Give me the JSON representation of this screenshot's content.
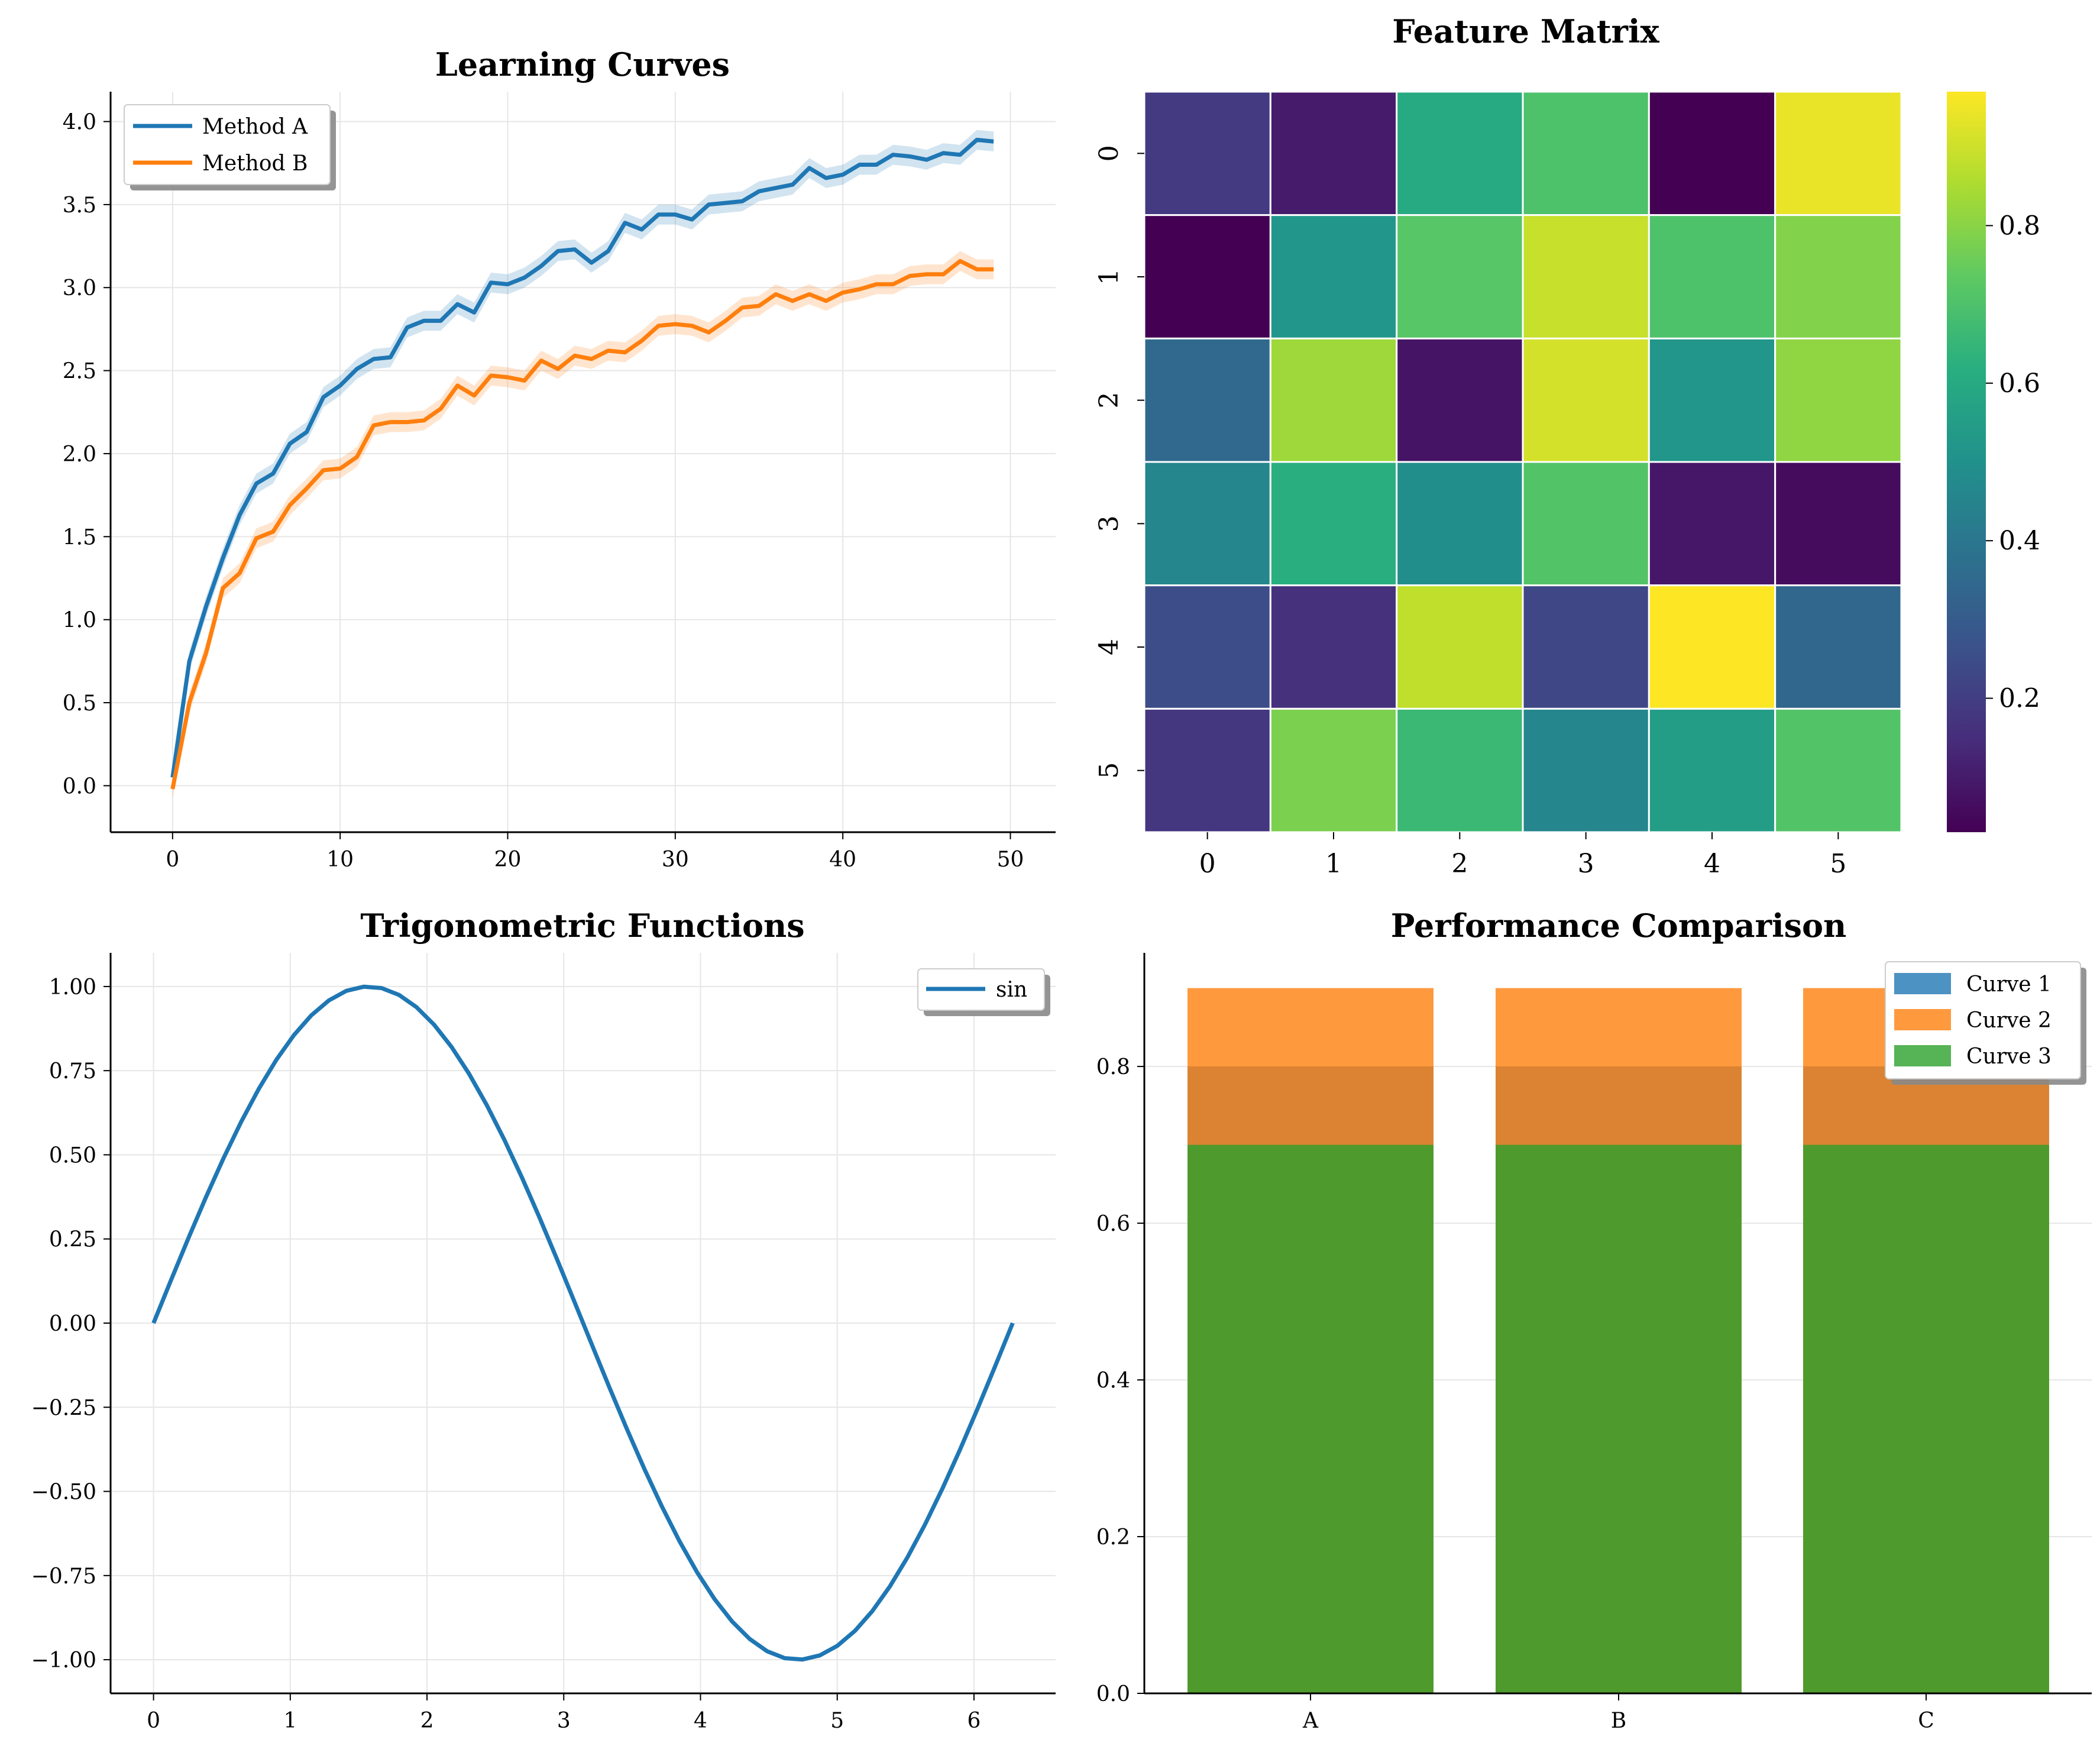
{
  "colors": {
    "blue": "#1f77b4",
    "orange": "#ff7f0e",
    "green": "#2ca02c"
  },
  "chart_data": [
    {
      "id": "learning",
      "type": "line",
      "title": "Learning Curves",
      "xlim": [
        -3.7,
        52.7
      ],
      "ylim": [
        -0.28,
        4.18
      ],
      "xticks": [
        0,
        10,
        20,
        30,
        40,
        50
      ],
      "yticks": [
        "0.0",
        "0.5",
        "1.0",
        "1.5",
        "2.0",
        "2.5",
        "3.0",
        "3.5",
        "4.0"
      ],
      "grid": true,
      "legend": "top-left",
      "x": [
        0,
        1,
        2,
        3,
        4,
        5,
        6,
        7,
        8,
        9,
        10,
        11,
        12,
        13,
        14,
        15,
        16,
        17,
        18,
        19,
        20,
        21,
        22,
        23,
        24,
        25,
        26,
        27,
        28,
        29,
        30,
        31,
        32,
        33,
        34,
        35,
        36,
        37,
        38,
        39,
        40,
        41,
        42,
        43,
        44,
        45,
        46,
        47,
        48,
        49
      ],
      "series": [
        {
          "name": "Method A",
          "color": "#1f77b4",
          "band": 0.06,
          "values": [
            0.05,
            0.75,
            1.08,
            1.37,
            1.63,
            1.82,
            1.88,
            2.06,
            2.13,
            2.34,
            2.41,
            2.51,
            2.57,
            2.58,
            2.76,
            2.8,
            2.8,
            2.9,
            2.85,
            3.03,
            3.02,
            3.06,
            3.13,
            3.22,
            3.23,
            3.15,
            3.22,
            3.39,
            3.35,
            3.44,
            3.44,
            3.41,
            3.5,
            3.51,
            3.52,
            3.58,
            3.6,
            3.62,
            3.72,
            3.66,
            3.68,
            3.74,
            3.74,
            3.8,
            3.79,
            3.77,
            3.81,
            3.8,
            3.89,
            3.88
          ]
        },
        {
          "name": "Method B",
          "color": "#ff7f0e",
          "band": 0.06,
          "values": [
            -0.02,
            0.5,
            0.8,
            1.19,
            1.28,
            1.49,
            1.53,
            1.69,
            1.79,
            1.9,
            1.91,
            1.98,
            2.17,
            2.19,
            2.19,
            2.2,
            2.27,
            2.41,
            2.35,
            2.47,
            2.46,
            2.44,
            2.56,
            2.51,
            2.59,
            2.57,
            2.62,
            2.61,
            2.68,
            2.77,
            2.78,
            2.77,
            2.73,
            2.8,
            2.88,
            2.89,
            2.96,
            2.92,
            2.96,
            2.92,
            2.97,
            2.99,
            3.02,
            3.02,
            3.07,
            3.08,
            3.08,
            3.16,
            3.11,
            3.11
          ]
        }
      ]
    },
    {
      "id": "heatmap",
      "type": "heatmap",
      "title": "Feature Matrix",
      "xticks": [
        "0",
        "1",
        "2",
        "3",
        "4",
        "5"
      ],
      "yticks": [
        "0",
        "1",
        "2",
        "3",
        "4",
        "5"
      ],
      "matrix": [
        [
          0.19,
          0.1,
          0.6,
          0.7,
          0.03,
          0.94
        ],
        [
          0.03,
          0.52,
          0.72,
          0.89,
          0.7,
          0.79
        ],
        [
          0.35,
          0.83,
          0.08,
          0.91,
          0.52,
          0.81
        ],
        [
          0.46,
          0.62,
          0.49,
          0.71,
          0.09,
          0.06
        ],
        [
          0.25,
          0.16,
          0.88,
          0.23,
          0.97,
          0.34
        ],
        [
          0.18,
          0.78,
          0.66,
          0.46,
          0.55,
          0.71
        ]
      ],
      "vmin": 0.03,
      "vmax": 0.97,
      "colorbar_ticks": [
        "0.2",
        "0.4",
        "0.6",
        "0.8"
      ],
      "colorbar_tick_values": [
        0.2,
        0.4,
        0.6,
        0.8
      ],
      "colormap": "viridis"
    },
    {
      "id": "trig",
      "type": "line",
      "title": "Trigonometric Functions",
      "xlim": [
        -0.314,
        6.597
      ],
      "ylim": [
        -1.1,
        1.1
      ],
      "xticks": [
        0,
        1,
        2,
        3,
        4,
        5,
        6
      ],
      "yticks": [
        "1.00",
        "0.75",
        "0.50",
        "0.25",
        "0.00",
        "−0.25",
        "−0.50",
        "−0.75",
        "−1.00"
      ],
      "ytick_values": [
        1.0,
        0.75,
        0.5,
        0.25,
        0.0,
        -0.25,
        -0.5,
        -0.75,
        -1.0
      ],
      "grid": true,
      "legend": "top-right",
      "series": [
        {
          "name": "sin",
          "color": "#1f77b4",
          "function": "sin",
          "x_range": [
            0,
            6.2832
          ],
          "points": 50
        }
      ]
    },
    {
      "id": "perf",
      "type": "bar",
      "title": "Performance Comparison",
      "categories": [
        "A",
        "B",
        "C"
      ],
      "ylim": [
        0,
        0.945
      ],
      "yticks": [
        "0.0",
        "0.2",
        "0.4",
        "0.6",
        "0.8"
      ],
      "ytick_values": [
        0.0,
        0.2,
        0.4,
        0.6,
        0.8
      ],
      "grid": true,
      "legend": "top-right",
      "overlapping": true,
      "series": [
        {
          "name": "Curve 1",
          "color": "#1f77b4",
          "values": [
            0.8,
            0.8,
            0.8
          ]
        },
        {
          "name": "Curve 2",
          "color": "#ff7f0e",
          "values": [
            0.9,
            0.9,
            0.9
          ]
        },
        {
          "name": "Curve 3",
          "color": "#2ca02c",
          "values": [
            0.7,
            0.7,
            0.7
          ]
        }
      ]
    }
  ]
}
